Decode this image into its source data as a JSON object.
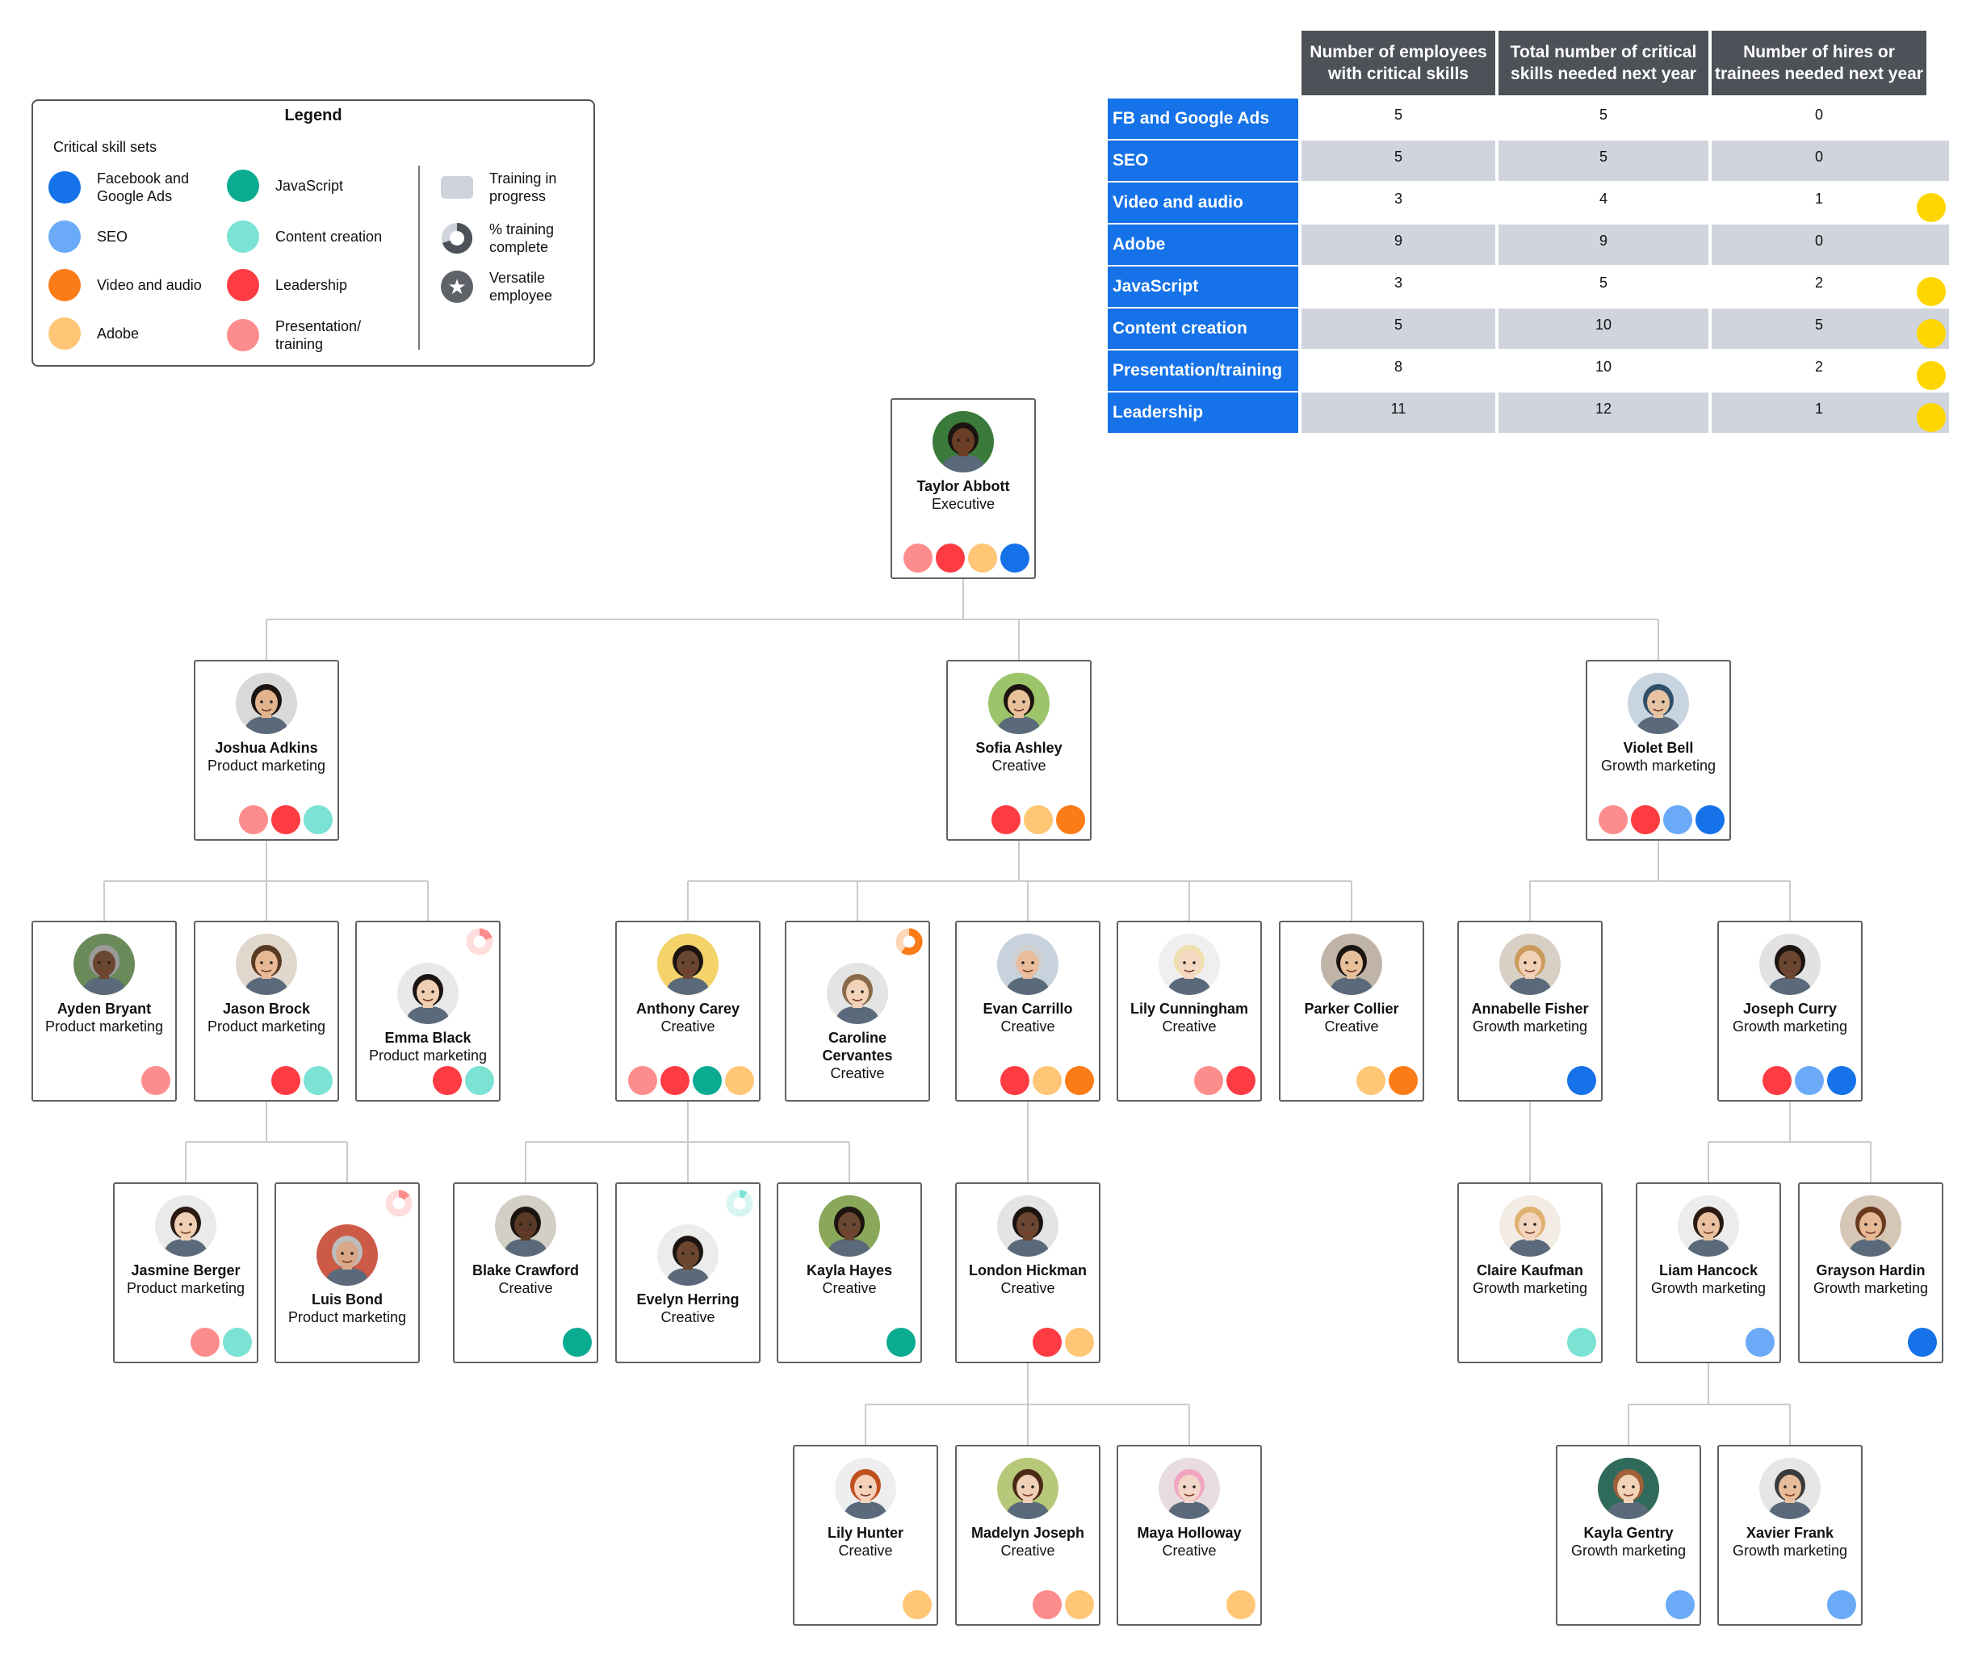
{
  "colors": {
    "fb_google": "#1572e8",
    "seo": "#6aaaf7",
    "video": "#fb7b17",
    "adobe": "#ffc676",
    "javascript": "#0bab92",
    "content": "#7be2d4",
    "leadership": "#fd3b42",
    "presentation": "#fd8d8c",
    "training": "#cfd4dc",
    "flag": "#ffd600"
  },
  "legend": {
    "title": "Legend",
    "subtitle": "Critical skill sets",
    "skills": [
      {
        "key": "fb_google",
        "label": "Facebook and\nGoogle Ads"
      },
      {
        "key": "seo",
        "label": "SEO"
      },
      {
        "key": "video",
        "label": "Video and audio"
      },
      {
        "key": "adobe",
        "label": "Adobe"
      },
      {
        "key": "javascript",
        "label": "JavaScript"
      },
      {
        "key": "content",
        "label": "Content creation"
      },
      {
        "key": "leadership",
        "label": "Leadership"
      },
      {
        "key": "presentation",
        "label": "Presentation/\ntraining"
      }
    ],
    "training_label": "Training in\nprogress",
    "percent_label": "% training\ncomplete",
    "versatile_label": "Versatile\nemployee"
  },
  "table": {
    "headers": [
      "Number of employees with critical skills",
      "Total number of critical skills needed next year",
      "Number of hires or trainees needed next year"
    ],
    "rows": [
      {
        "label": "FB and Google Ads",
        "employees": "5",
        "needed": "5",
        "hires": "0",
        "flag": false
      },
      {
        "label": "SEO",
        "employees": "5",
        "needed": "5",
        "hires": "0",
        "flag": false
      },
      {
        "label": "Video and audio",
        "employees": "3",
        "needed": "4",
        "hires": "1",
        "flag": true
      },
      {
        "label": "Adobe",
        "employees": "9",
        "needed": "9",
        "hires": "0",
        "flag": false
      },
      {
        "label": "JavaScript",
        "employees": "3",
        "needed": "5",
        "hires": "2",
        "flag": true
      },
      {
        "label": "Content creation",
        "employees": "5",
        "needed": "10",
        "hires": "5",
        "flag": true
      },
      {
        "label": "Presentation/training",
        "employees": "8",
        "needed": "10",
        "hires": "2",
        "flag": true
      },
      {
        "label": "Leadership",
        "employees": "11",
        "needed": "12",
        "hires": "1",
        "flag": true
      }
    ]
  },
  "people": [
    {
      "id": "taylor",
      "name": "Taylor Abbott",
      "role": "Executive",
      "skills": [
        "presentation",
        "leadership",
        "adobe",
        "fb_google"
      ]
    },
    {
      "id": "joshua",
      "name": "Joshua Adkins",
      "role": "Product marketing",
      "skills": [
        "presentation",
        "leadership",
        "content"
      ]
    },
    {
      "id": "sofia",
      "name": "Sofia Ashley",
      "role": "Creative",
      "skills": [
        "leadership",
        "adobe",
        "video"
      ]
    },
    {
      "id": "violet",
      "name": "Violet Bell",
      "role": "Growth marketing",
      "skills": [
        "presentation",
        "leadership",
        "seo",
        "fb_google"
      ]
    },
    {
      "id": "ayden",
      "name": "Ayden Bryant",
      "role": "Product marketing",
      "skills": [
        "presentation"
      ]
    },
    {
      "id": "jason",
      "name": "Jason Brock",
      "role": "Product marketing",
      "skills": [
        "leadership",
        "content"
      ]
    },
    {
      "id": "emma",
      "name": "Emma Black",
      "role": "Product marketing",
      "skills": [
        "leadership",
        "content"
      ],
      "training": {
        "skill": "presentation",
        "percent": 20
      }
    },
    {
      "id": "anthony",
      "name": "Anthony Carey",
      "role": "Creative",
      "skills": [
        "presentation",
        "leadership",
        "javascript",
        "adobe"
      ]
    },
    {
      "id": "caroline",
      "name": "Caroline Cervantes",
      "role": "Creative",
      "skills": [],
      "training": {
        "skill": "video",
        "percent": 60
      }
    },
    {
      "id": "evan",
      "name": "Evan Carrillo",
      "role": "Creative",
      "skills": [
        "leadership",
        "adobe",
        "video"
      ]
    },
    {
      "id": "lily",
      "name": "Lily Cunningham",
      "role": "Creative",
      "skills": [
        "presentation",
        "leadership"
      ]
    },
    {
      "id": "parker",
      "name": "Parker Collier",
      "role": "Creative",
      "skills": [
        "adobe",
        "video"
      ]
    },
    {
      "id": "annabelle",
      "name": "Annabelle Fisher",
      "role": "Growth marketing",
      "skills": [
        "fb_google"
      ]
    },
    {
      "id": "joseph",
      "name": "Joseph Curry",
      "role": "Growth marketing",
      "skills": [
        "leadership",
        "seo",
        "fb_google"
      ]
    },
    {
      "id": "jasmine",
      "name": "Jasmine Berger",
      "role": "Product marketing",
      "skills": [
        "presentation",
        "content"
      ]
    },
    {
      "id": "luis",
      "name": "Luis Bond",
      "role": "Product marketing",
      "skills": [],
      "training": {
        "skill": "presentation",
        "percent": 15
      }
    },
    {
      "id": "blake",
      "name": "Blake Crawford",
      "role": "Creative",
      "skills": [
        "javascript"
      ]
    },
    {
      "id": "evelyn",
      "name": "Evelyn Herring",
      "role": "Creative",
      "skills": [],
      "training": {
        "skill": "content",
        "percent": 10
      }
    },
    {
      "id": "kaylah",
      "name": "Kayla Hayes",
      "role": "Creative",
      "skills": [
        "javascript"
      ]
    },
    {
      "id": "london",
      "name": "London Hickman",
      "role": "Creative",
      "skills": [
        "leadership",
        "adobe"
      ]
    },
    {
      "id": "claire",
      "name": "Claire Kaufman",
      "role": "Growth marketing",
      "skills": [
        "content"
      ]
    },
    {
      "id": "liam",
      "name": "Liam Hancock",
      "role": "Growth marketing",
      "skills": [
        "seo"
      ]
    },
    {
      "id": "grayson",
      "name": "Grayson Hardin",
      "role": "Growth marketing",
      "skills": [
        "fb_google"
      ]
    },
    {
      "id": "lilyh",
      "name": "Lily Hunter",
      "role": "Creative",
      "skills": [
        "adobe"
      ]
    },
    {
      "id": "madelyn",
      "name": "Madelyn Joseph",
      "role": "Creative",
      "skills": [
        "presentation",
        "adobe"
      ]
    },
    {
      "id": "maya",
      "name": "Maya Holloway",
      "role": "Creative",
      "skills": [
        "adobe"
      ]
    },
    {
      "id": "kaylag",
      "name": "Kayla Gentry",
      "role": "Growth marketing",
      "skills": [
        "seo"
      ]
    },
    {
      "id": "xavier",
      "name": "Xavier Frank",
      "role": "Growth marketing",
      "skills": [
        "seo"
      ]
    }
  ],
  "reports": [
    [
      "taylor",
      "joshua"
    ],
    [
      "taylor",
      "sofia"
    ],
    [
      "taylor",
      "violet"
    ],
    [
      "joshua",
      "ayden"
    ],
    [
      "joshua",
      "jason"
    ],
    [
      "joshua",
      "emma"
    ],
    [
      "sofia",
      "anthony"
    ],
    [
      "sofia",
      "caroline"
    ],
    [
      "sofia",
      "evan"
    ],
    [
      "sofia",
      "lily"
    ],
    [
      "sofia",
      "parker"
    ],
    [
      "violet",
      "annabelle"
    ],
    [
      "violet",
      "joseph"
    ],
    [
      "jason",
      "jasmine"
    ],
    [
      "jason",
      "luis"
    ],
    [
      "anthony",
      "blake"
    ],
    [
      "anthony",
      "evelyn"
    ],
    [
      "anthony",
      "kaylah"
    ],
    [
      "evan",
      "london"
    ],
    [
      "annabelle",
      "claire"
    ],
    [
      "joseph",
      "liam"
    ],
    [
      "joseph",
      "grayson"
    ],
    [
      "london",
      "lilyh"
    ],
    [
      "london",
      "madelyn"
    ],
    [
      "london",
      "maya"
    ],
    [
      "liam",
      "kaylag"
    ],
    [
      "liam",
      "xavier"
    ]
  ]
}
